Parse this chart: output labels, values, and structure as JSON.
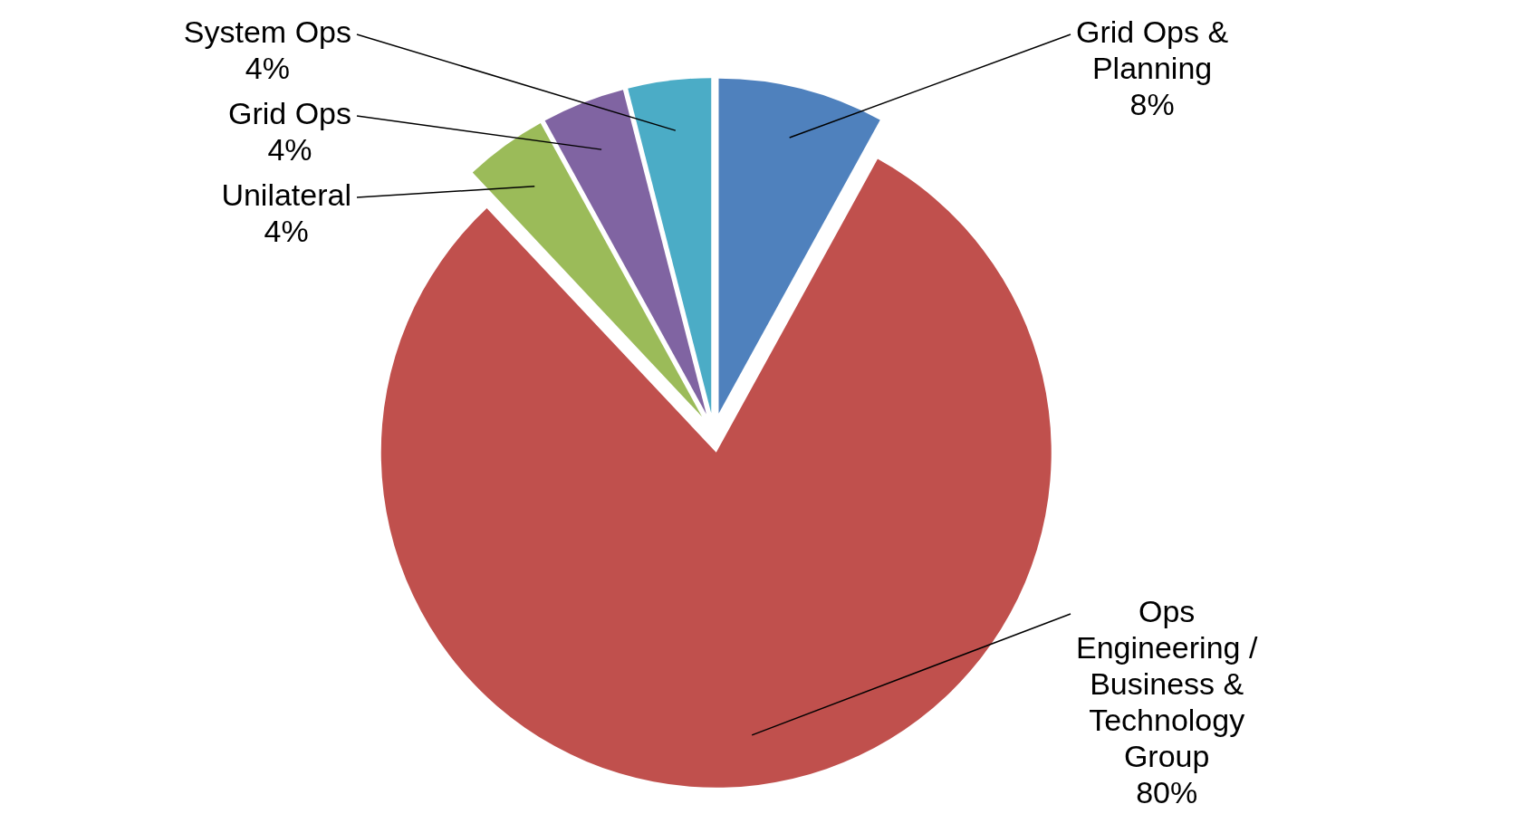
{
  "chart_data": {
    "type": "pie",
    "categories": [
      "Grid Ops & Planning",
      "Ops Engineering / Business & Technology Group",
      "Unilateral",
      "Grid Ops",
      "System Ops"
    ],
    "values": [
      8,
      80,
      4,
      4,
      4
    ],
    "value_labels": [
      "8%",
      "80%",
      "4%",
      "4%",
      "4%"
    ],
    "colors": [
      "#4f81bd",
      "#c0504d",
      "#9bbb59",
      "#8064a2",
      "#4bacc6"
    ]
  }
}
